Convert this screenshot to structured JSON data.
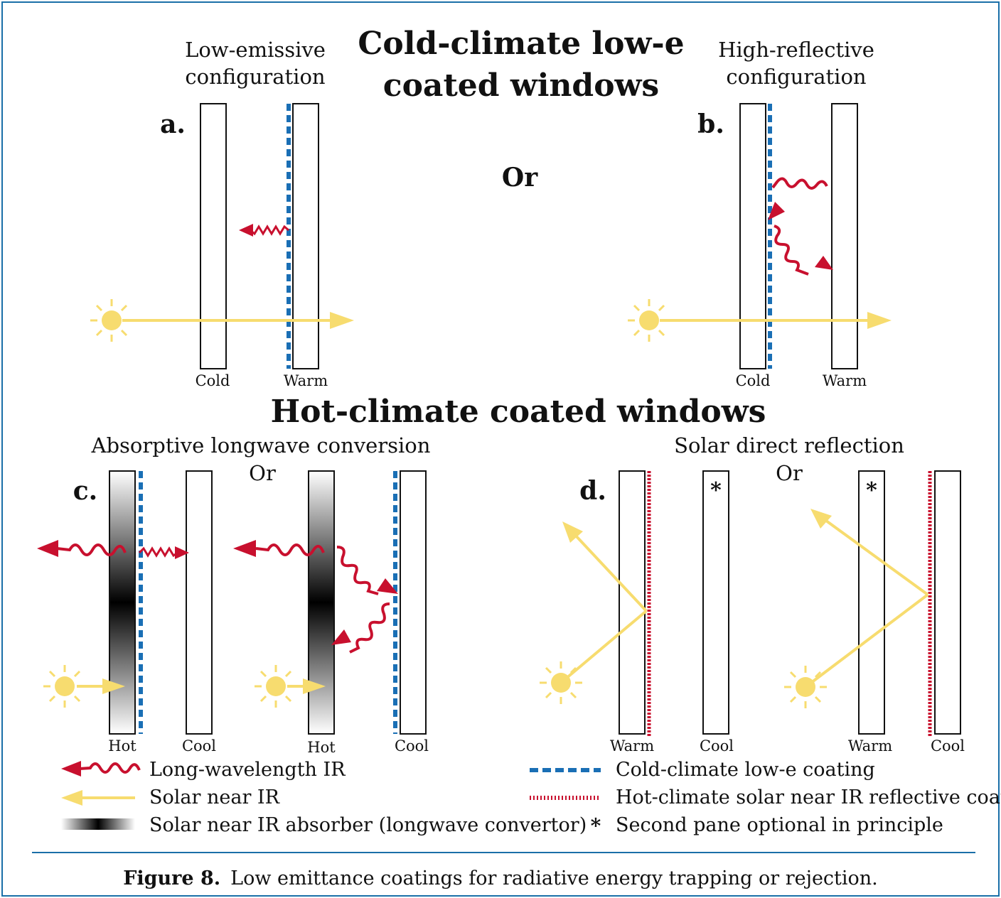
{
  "colors": {
    "frame": "#1a6fa8",
    "lowe_coating": "#1a6fb5",
    "hot_coating": "#c8102e",
    "ir_arrow": "#c8102e",
    "solar_arrow": "#f7dc6f",
    "sun": "#f7dc6f",
    "pane_stroke": "#111111"
  },
  "cold_section": {
    "title_line1": "Cold-climate low-e",
    "title_line2": "coated windows",
    "or": "Or",
    "panel_a": {
      "letter": "a.",
      "caption_line1": "Low-emissive",
      "caption_line2": "configuration",
      "left_label": "Cold",
      "right_label": "Warm"
    },
    "panel_b": {
      "letter": "b.",
      "caption_line1": "High-reflective",
      "caption_line2": "configuration",
      "left_label": "Cold",
      "right_label": "Warm"
    }
  },
  "hot_section": {
    "title": "Hot-climate coated windows",
    "panel_c": {
      "letter": "c.",
      "caption": "Absorptive longwave conversion",
      "or": "Or",
      "labels": [
        "Hot",
        "Cool",
        "Hot",
        "Cool"
      ]
    },
    "panel_d": {
      "letter": "d.",
      "caption": "Solar direct reflection",
      "or": "Or",
      "labels": [
        "Warm",
        "Cool",
        "Warm",
        "Cool"
      ],
      "optional_marker": "*"
    }
  },
  "legend": {
    "long_ir": "Long-wavelength IR",
    "solar_nir": "Solar near IR",
    "absorber": "Solar near IR absorber (longwave convertor)",
    "lowe": "Cold-climate low-e coating",
    "hot_coating": "Hot-climate solar near IR reflective coating",
    "asterisk": "*",
    "asterisk_text": "Second pane optional in principle"
  },
  "caption": {
    "label": "Figure 8.",
    "text": "Low emittance coatings for radiative energy trapping or rejection."
  },
  "icons": {
    "sun": "sun-icon",
    "wavy_arrow": "wavy-ir-arrow-icon",
    "straight_arrow": "solar-arrow-icon"
  }
}
